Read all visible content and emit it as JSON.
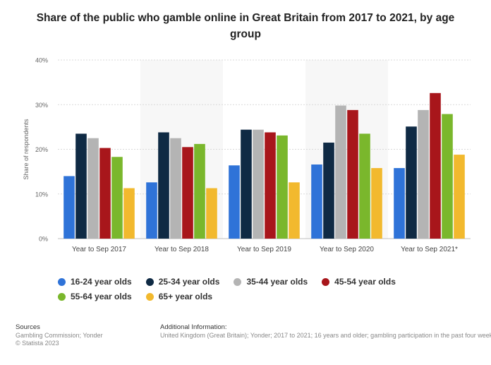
{
  "title": "Share of the public who gamble online in Great Britain from 2017 to 2021, by age group",
  "footer": {
    "sources_label": "Sources",
    "sources_text": "Gambling Commission; Yonder",
    "copyright": "© Statista 2023",
    "additional_label": "Additional Information:",
    "additional_text": "United Kingdom (Great Britain); Yonder; 2017 to 2021; 16 years and older; gambling participation in the past four weeks; T"
  },
  "chart_data": {
    "type": "bar",
    "title": "Share of the public who gamble online in Great Britain from 2017 to 2021, by age group",
    "ylabel": "Share of respondents",
    "xlabel": "",
    "ylim": [
      0,
      40
    ],
    "yticks": [
      "0%",
      "10%",
      "20%",
      "30%",
      "40%"
    ],
    "grid": true,
    "legend_position": "bottom",
    "categories": [
      "Year to Sep 2017",
      "Year to Sep 2018",
      "Year to Sep 2019",
      "Year to Sep 2020",
      "Year to Sep 2021*"
    ],
    "series": [
      {
        "name": "16-24 year olds",
        "color": "#2f73d8",
        "values": [
          14,
          12.6,
          16.4,
          16.6,
          15.8
        ]
      },
      {
        "name": "25-34 year olds",
        "color": "#0f2a44",
        "values": [
          23.5,
          23.8,
          24.4,
          21.5,
          25.1
        ]
      },
      {
        "name": "35-44 year olds",
        "color": "#b4b4b4",
        "values": [
          22.5,
          22.5,
          24.4,
          29.8,
          28.8
        ]
      },
      {
        "name": "45-54 year olds",
        "color": "#a8161b",
        "values": [
          20.3,
          20.5,
          23.8,
          28.8,
          32.6
        ]
      },
      {
        "name": "55-64 year olds",
        "color": "#7ab72c",
        "values": [
          18.3,
          21.2,
          23.1,
          23.5,
          27.9
        ]
      },
      {
        "name": "65+ year olds",
        "color": "#f2b92e",
        "values": [
          11.3,
          11.3,
          12.6,
          15.8,
          18.8
        ]
      }
    ]
  }
}
